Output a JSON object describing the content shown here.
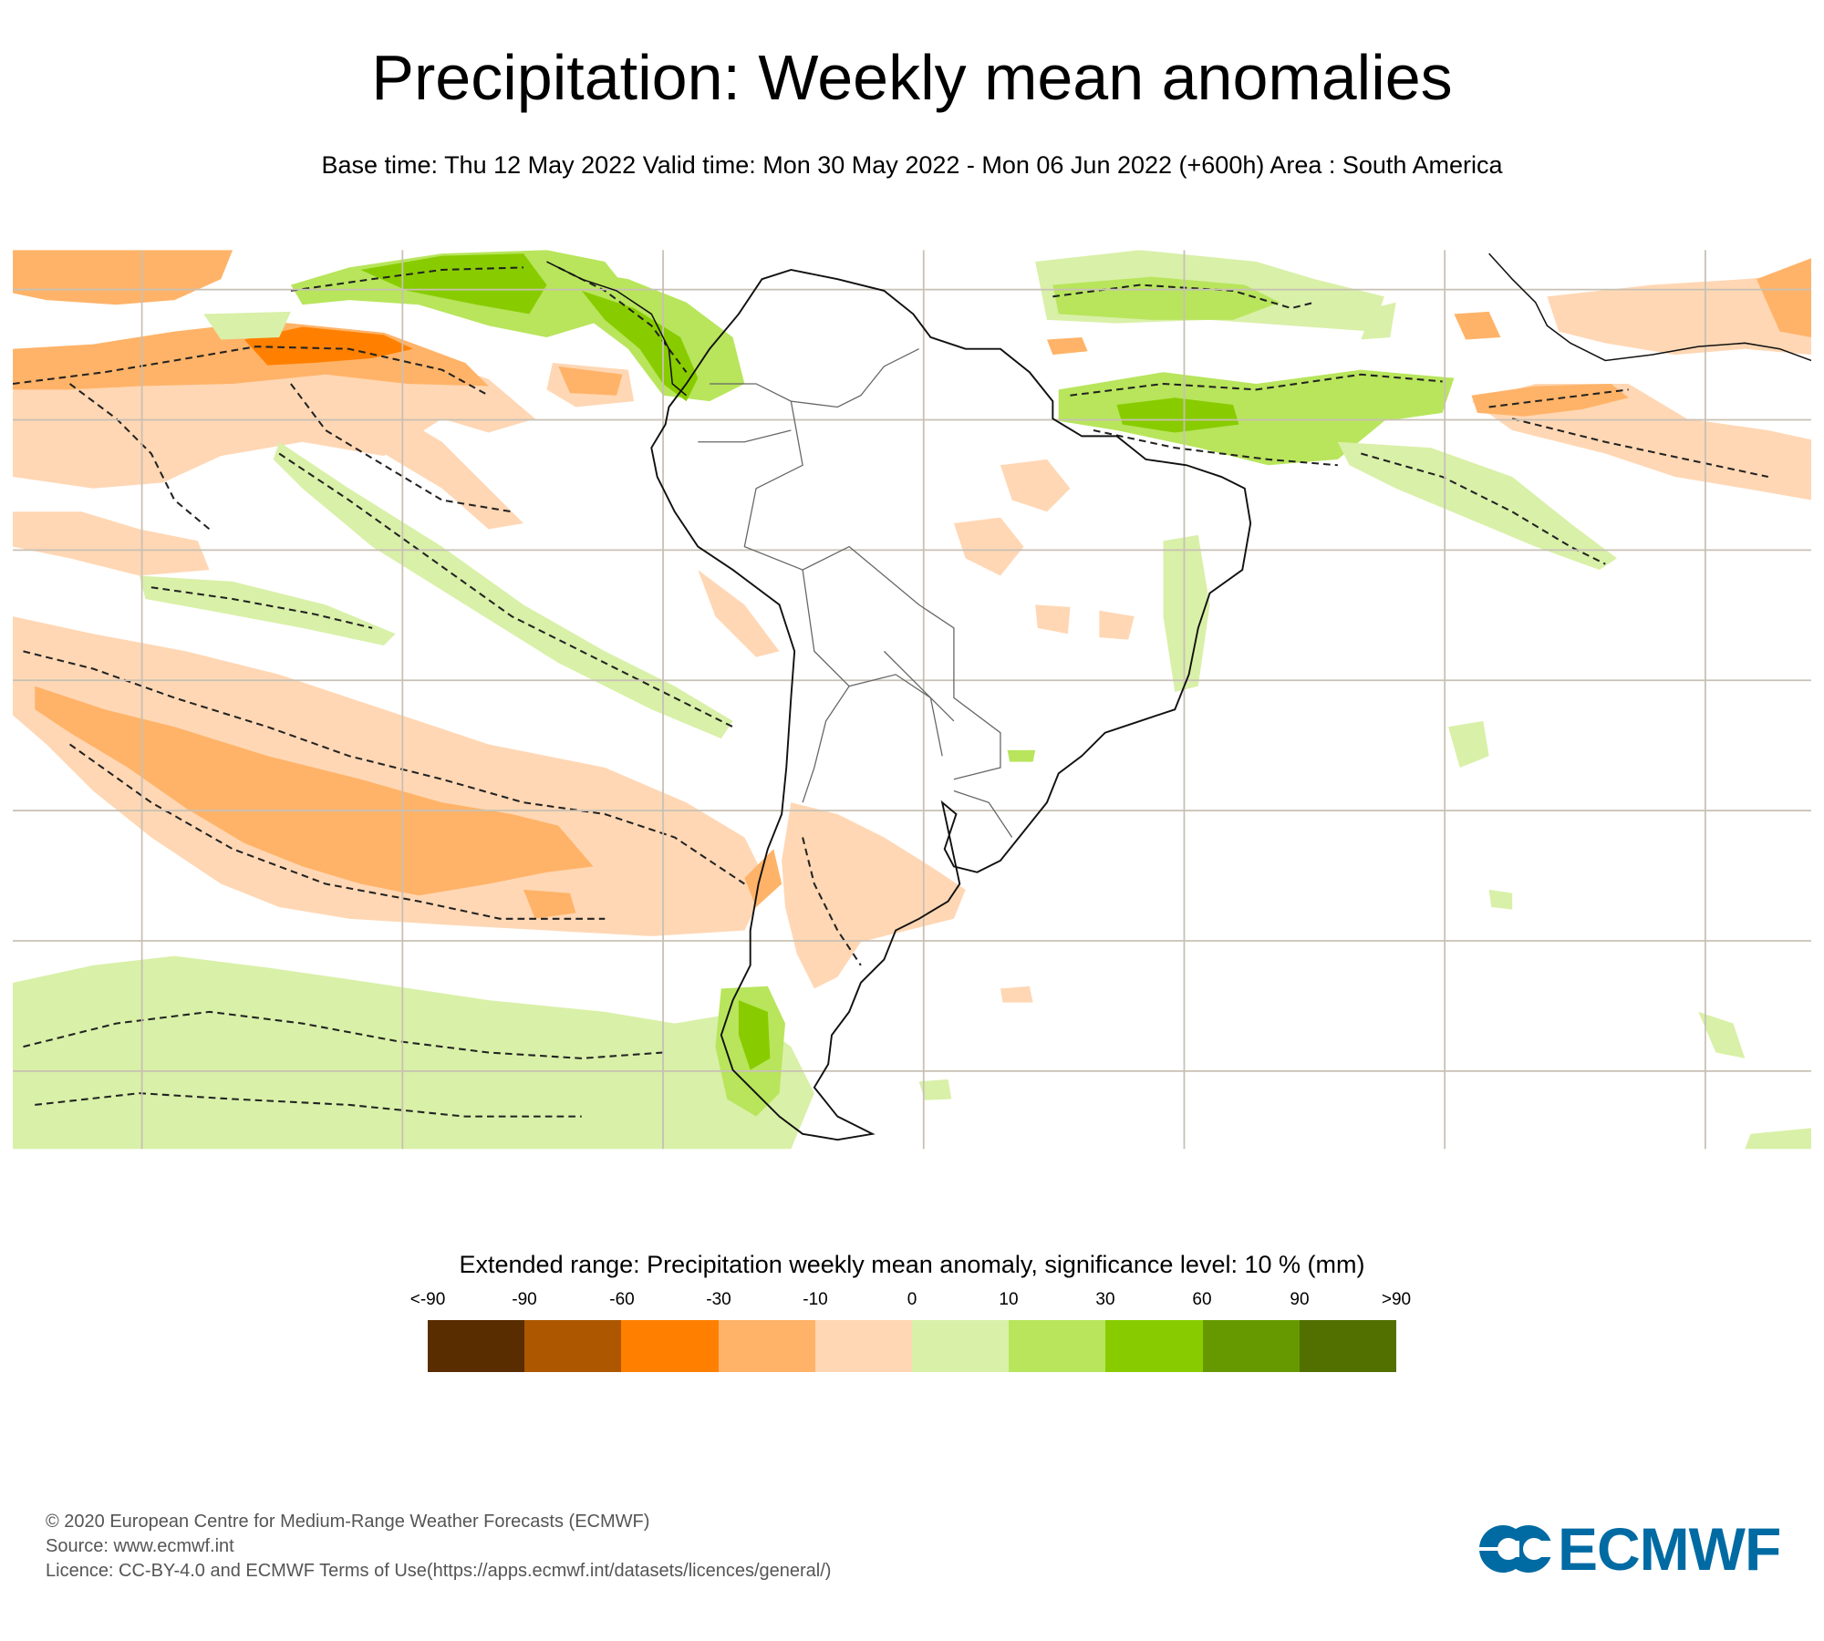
{
  "header": {
    "title": "Precipitation: Weekly mean anomalies",
    "subtitle": "Base time: Thu 12 May 2022 Valid time: Mon 30 May 2022 - Mon 06 Jun 2022 (+600h) Area : South America"
  },
  "map": {
    "area": "South America",
    "projection_grid": "lat/lon graticule",
    "land_fill": "#ffffff",
    "grid_color": "#c8c0b4",
    "coast_color": "#000000",
    "border_color": "#555555",
    "significance_contour_style": "dashed"
  },
  "legend": {
    "title": "Extended range: Precipitation weekly mean anomaly, significance level: 10 % (mm)",
    "labels": [
      "<-90",
      "-90",
      "-60",
      "-30",
      "-10",
      "0",
      "10",
      "30",
      "60",
      "90",
      ">90"
    ],
    "bins": [
      {
        "range": "<-90",
        "color": "#5a2d00"
      },
      {
        "range": "-90 to -60",
        "color": "#ad5700"
      },
      {
        "range": "-60 to -30",
        "color": "#ff8000"
      },
      {
        "range": "-30 to -10",
        "color": "#ffb368"
      },
      {
        "range": "-10 to 0",
        "color": "#ffd7b4"
      },
      {
        "range": "0 to 10",
        "color": "#d9f0a8"
      },
      {
        "range": "10 to 30",
        "color": "#b8e55c"
      },
      {
        "range": "30 to 60",
        "color": "#88cc00"
      },
      {
        "range": "60 to 90",
        "color": "#669900"
      },
      {
        "range": ">90",
        "color": "#527000"
      }
    ]
  },
  "footer": {
    "copyright": "© 2020 European Centre for Medium-Range Weather Forecasts (ECMWF)",
    "source": "Source: www.ecmwf.int",
    "licence": "Licence: CC-BY-4.0 and ECMWF Terms of Use(https://apps.ecmwf.int/datasets/licences/general/)"
  },
  "logo": {
    "text": "ECMWF",
    "color": "#006aa3",
    "icon": "ecmwf-logo-icon"
  }
}
